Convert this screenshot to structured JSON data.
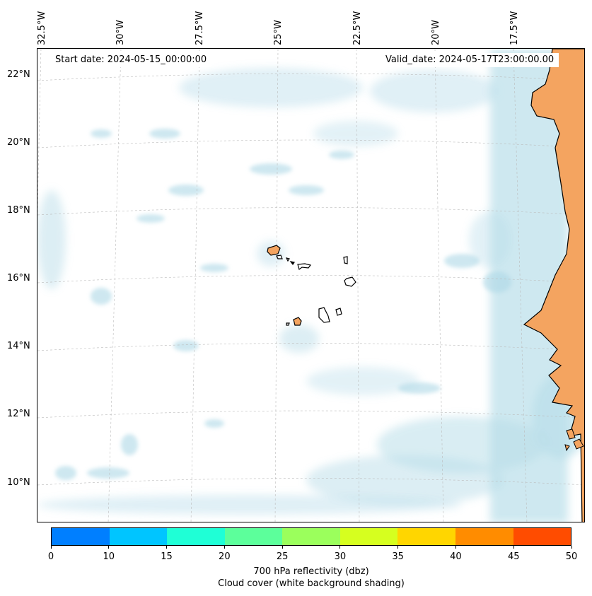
{
  "header": {
    "start_date": "Start date: 2024-05-15_00:00:00",
    "valid_date": "Valid_date: 2024-05-17T23:00:00.00"
  },
  "map": {
    "lon_labels": [
      "32.5°W",
      "30°W",
      "27.5°W",
      "25°W",
      "22.5°W",
      "20°W",
      "17.5°W"
    ],
    "lat_labels": [
      "22°N",
      "20°N",
      "18°N",
      "16°N",
      "14°N",
      "12°N",
      "10°N"
    ],
    "land_color": "#f4a460",
    "cloud_color": "#add8e6",
    "ocean_color": "#ffffff",
    "gridlines": "dashed light grey"
  },
  "colorbar": {
    "ticks": [
      "0",
      "10",
      "15",
      "20",
      "25",
      "30",
      "35",
      "40",
      "45",
      "50"
    ],
    "colors": [
      "#007fff",
      "#00c5ff",
      "#1fffd6",
      "#5cff9b",
      "#9bff5c",
      "#d6ff1f",
      "#ffd600",
      "#ff8c00",
      "#ff4c00"
    ],
    "label_line1": "700 hPa reflectivity (dbz)",
    "label_line2": "Cloud cover (white background shading)"
  }
}
